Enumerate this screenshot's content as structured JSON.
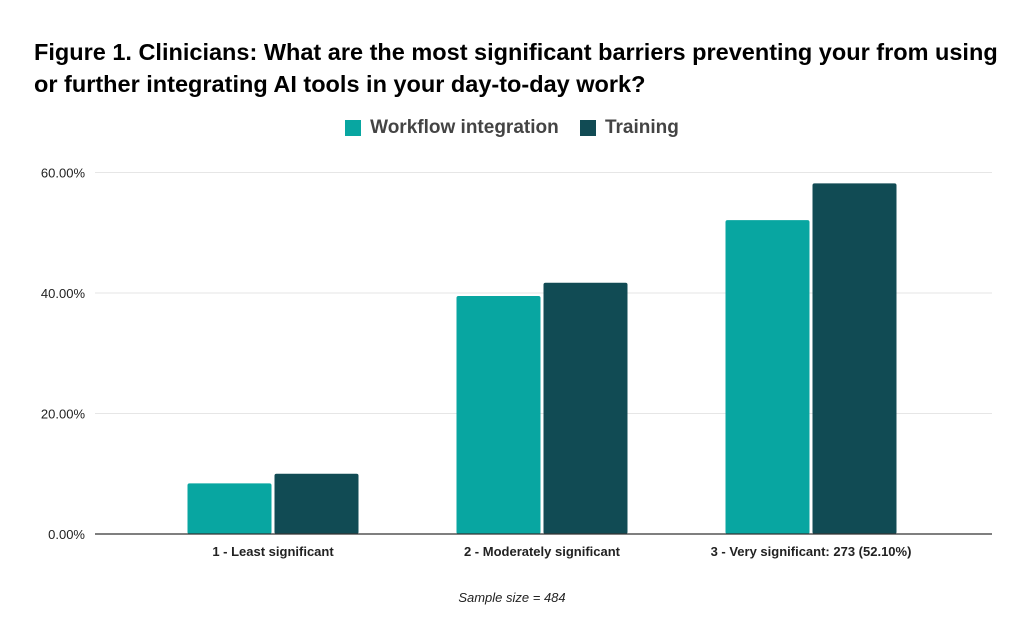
{
  "chart_data": {
    "type": "bar",
    "title": "Figure 1. Clinicians: What are the most significant barriers preventing your from using or further integrating AI tools in your day-to-day work?",
    "categories": [
      "1 - Least significant",
      "2 - Moderately significant",
      "3 - Very significant: 273 (52.10%)"
    ],
    "series": [
      {
        "name": "Workflow integration",
        "color": "#08a6a1",
        "values": [
          8.4,
          39.5,
          52.1
        ]
      },
      {
        "name": "Training",
        "color": "#114b54",
        "values": [
          10.0,
          41.7,
          58.2
        ]
      }
    ],
    "yticks": [
      "0.00%",
      "20.00%",
      "40.00%",
      "60.00%"
    ],
    "ytick_values": [
      0,
      20,
      40,
      60
    ],
    "ylim": [
      0,
      60
    ],
    "xlabel": "",
    "ylabel": "",
    "grid": true,
    "legend_position": "top-center",
    "note": "Sample size = 484"
  }
}
